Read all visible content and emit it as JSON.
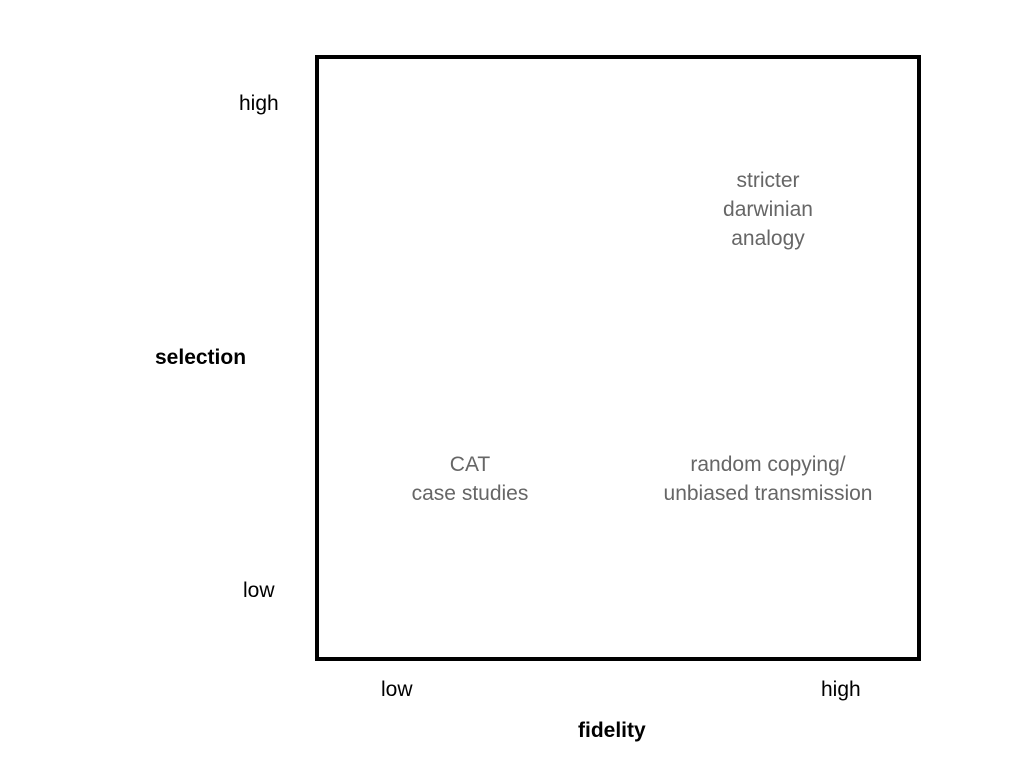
{
  "colors": {
    "frame": "#000000",
    "label": "#000000",
    "region_text": "#666666",
    "background": "#ffffff"
  },
  "y_axis": {
    "title": "selection",
    "high": "high",
    "low": "low"
  },
  "x_axis": {
    "title": "fidelity",
    "low": "low",
    "high": "high"
  },
  "regions": {
    "top_right": "stricter\ndarwinian\nanalogy",
    "bottom_left": "CAT\ncase studies",
    "bottom_right": "random copying/\nunbiased transmission"
  }
}
